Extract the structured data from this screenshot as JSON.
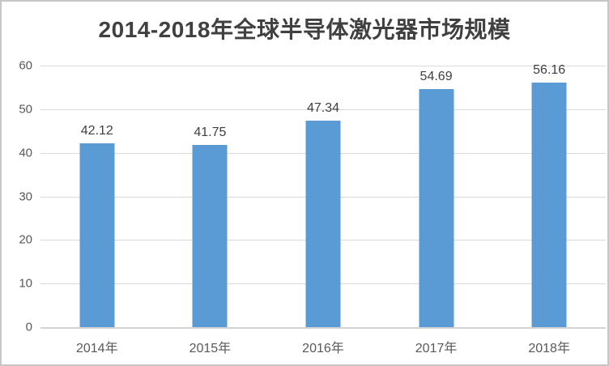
{
  "window": {
    "background": "#FFFFFF",
    "border_color": "#C6C6C6"
  },
  "chart_data": {
    "type": "bar",
    "title": "2014-2018年全球半导体激光器市场规模",
    "categories": [
      "2014年",
      "2015年",
      "2016年",
      "2017年",
      "2018年"
    ],
    "values": [
      42.12,
      41.75,
      47.34,
      54.69,
      56.16
    ],
    "data_labels": [
      "42.12",
      "41.75",
      "47.34",
      "54.69",
      "56.16"
    ],
    "y_ticks": [
      0,
      10,
      20,
      30,
      40,
      50,
      60
    ],
    "ylim": [
      0,
      60
    ],
    "grid": true,
    "legend_position": "none",
    "xlabel": "",
    "ylabel": "",
    "colors": {
      "bar": "#5B9BD5",
      "gridline": "#D9D9D9",
      "axis_line": "#D3D3D3",
      "axis_labels": "#595959",
      "data_labels": "#3F3F3F",
      "title": "#404040"
    }
  }
}
